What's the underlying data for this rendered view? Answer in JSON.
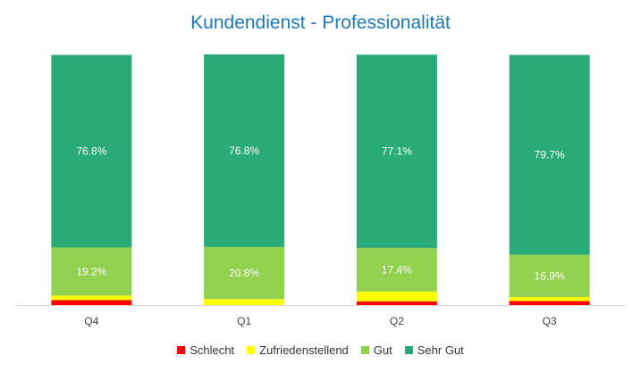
{
  "chart_data": {
    "type": "bar",
    "stacked": true,
    "title": "Kundendienst - Professionalität",
    "categories": [
      "Q4",
      "Q1",
      "Q2",
      "Q3"
    ],
    "series": [
      {
        "name": "Schlecht",
        "color": "#ff0000",
        "values": [
          2.0,
          0.0,
          1.5,
          1.6
        ],
        "labels": [
          "",
          "",
          "",
          ""
        ]
      },
      {
        "name": "Zufriedenstellend",
        "color": "#ffff00",
        "values": [
          1.8,
          2.4,
          3.9,
          1.6
        ],
        "labels": [
          "",
          "",
          "",
          ""
        ]
      },
      {
        "name": "Gut",
        "color": "#92d050",
        "values": [
          19.2,
          20.8,
          17.4,
          16.9
        ],
        "labels": [
          "19.2%",
          "20.8%",
          "17.4%",
          "16.9%"
        ]
      },
      {
        "name": "Sehr Gut",
        "color": "#2aaa76",
        "values": [
          76.8,
          76.8,
          77.1,
          79.7
        ],
        "labels": [
          "76.8%",
          "76.8%",
          "77.1%",
          "79.7%"
        ]
      }
    ],
    "ylim": [
      0,
      100
    ],
    "grid": false,
    "legend_position": "bottom"
  }
}
